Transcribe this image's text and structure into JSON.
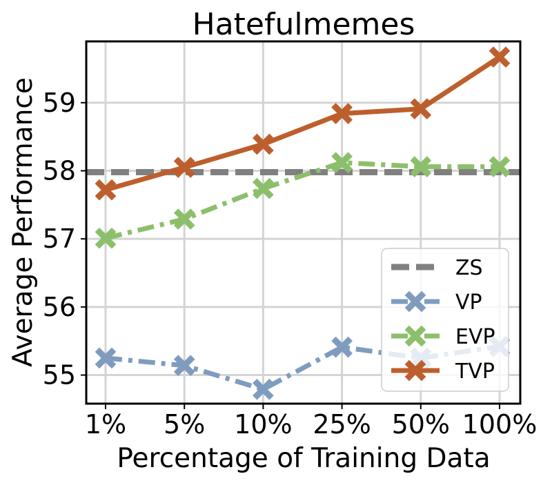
{
  "chart_data": {
    "type": "line",
    "title": "Hatefulmemes",
    "xlabel": "Percentage of Training Data",
    "ylabel": "Average Performance",
    "categories": [
      "1%",
      "5%",
      "10%",
      "25%",
      "50%",
      "100%"
    ],
    "yticks": [
      55,
      56,
      57,
      58,
      59
    ],
    "ylim": [
      54.58,
      59.9
    ],
    "grid": true,
    "legend_position": "lower-right",
    "reference_lines": [
      {
        "name": "ZS",
        "value": 57.98,
        "color": "#808080",
        "style": "dashed"
      }
    ],
    "series": [
      {
        "name": "VP",
        "color": "#7f9cbf",
        "style": "dashdot",
        "marker": "X",
        "values": [
          55.25,
          55.14,
          54.79,
          55.41,
          55.25,
          55.42
        ]
      },
      {
        "name": "EVP",
        "color": "#8cbf6b",
        "style": "dashdot",
        "marker": "X",
        "values": [
          57.01,
          57.29,
          57.74,
          58.12,
          58.06,
          58.06
        ]
      },
      {
        "name": "TVP",
        "color": "#bd5f2d",
        "style": "solid",
        "marker": "X",
        "values": [
          57.72,
          58.05,
          58.39,
          58.84,
          58.91,
          59.67
        ]
      }
    ]
  }
}
